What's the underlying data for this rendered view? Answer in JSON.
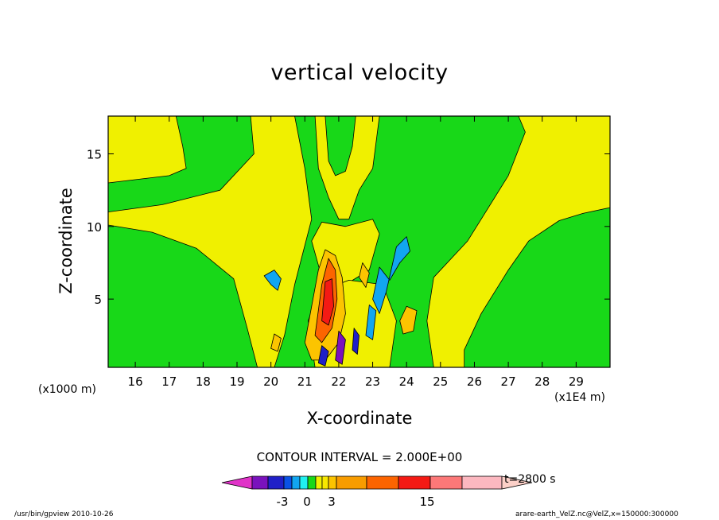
{
  "chart_data": {
    "type": "heatmap",
    "title": "vertical velocity",
    "xlabel": "X-coordinate",
    "ylabel": "Z-coordinate",
    "x_unit": "(x1E4 m)",
    "y_unit": "(x1000 m)",
    "xlim": [
      15.2,
      30.0
    ],
    "ylim": [
      0.3,
      17.6
    ],
    "x_ticks": [
      16,
      17,
      18,
      19,
      20,
      21,
      22,
      23,
      24,
      25,
      26,
      27,
      28,
      29
    ],
    "y_ticks": [
      5,
      10,
      15
    ],
    "contour_interval": "CONTOUR INTERVAL = 2.000E+00",
    "time": "t=2800 s",
    "colorbar_ticks": [
      "-3",
      "0",
      "3",
      "15"
    ],
    "background_value": -0.5,
    "regions": [
      {
        "value": 0.5,
        "points": [
          [
            15.2,
            10.1
          ],
          [
            16.5,
            9.6
          ],
          [
            17.8,
            8.5
          ],
          [
            18.9,
            6.4
          ],
          [
            19.3,
            3.0
          ],
          [
            19.6,
            0.3
          ],
          [
            20.1,
            0.3
          ],
          [
            20.4,
            2.5
          ],
          [
            20.7,
            6.0
          ],
          [
            21.2,
            10.5
          ],
          [
            21.0,
            14.0
          ],
          [
            20.7,
            17.6
          ],
          [
            19.4,
            17.6
          ],
          [
            19.5,
            15.0
          ],
          [
            18.5,
            12.5
          ],
          [
            16.8,
            11.5
          ],
          [
            15.2,
            11.0
          ]
        ]
      },
      {
        "value": 0.5,
        "points": [
          [
            17.2,
            17.6
          ],
          [
            17.4,
            15.5
          ],
          [
            17.5,
            14.0
          ],
          [
            17.0,
            13.5
          ],
          [
            15.2,
            13.0
          ],
          [
            15.2,
            17.6
          ]
        ]
      },
      {
        "value": 0.5,
        "points": [
          [
            24.8,
            0.3
          ],
          [
            24.6,
            3.5
          ],
          [
            24.8,
            6.5
          ],
          [
            25.8,
            9.0
          ],
          [
            26.2,
            10.5
          ],
          [
            27.0,
            13.5
          ],
          [
            27.5,
            16.5
          ],
          [
            27.3,
            17.6
          ],
          [
            30.0,
            17.6
          ],
          [
            30.0,
            11.3
          ],
          [
            29.2,
            10.9
          ],
          [
            28.5,
            10.4
          ],
          [
            27.6,
            9.0
          ],
          [
            27.0,
            7.0
          ],
          [
            26.2,
            4.0
          ],
          [
            25.7,
            1.5
          ],
          [
            25.7,
            0.3
          ]
        ]
      },
      {
        "value": 0.5,
        "points": [
          [
            21.3,
            17.6
          ],
          [
            21.4,
            14.0
          ],
          [
            21.7,
            12.0
          ],
          [
            22.0,
            10.5
          ],
          [
            22.3,
            10.5
          ],
          [
            22.6,
            12.5
          ],
          [
            23.0,
            14.0
          ],
          [
            23.2,
            17.6
          ]
        ]
      },
      {
        "value": 0.5,
        "points": [
          [
            21.2,
            9.0
          ],
          [
            21.5,
            6.5
          ],
          [
            22.2,
            6.0
          ],
          [
            22.9,
            7.0
          ],
          [
            23.2,
            9.5
          ],
          [
            23.0,
            10.5
          ],
          [
            22.2,
            10.0
          ],
          [
            21.5,
            10.3
          ]
        ]
      },
      {
        "value": 0.5,
        "points": [
          [
            21.1,
            3.5
          ],
          [
            21.3,
            0.3
          ],
          [
            23.5,
            0.3
          ],
          [
            23.7,
            3.5
          ],
          [
            23.3,
            6.0
          ],
          [
            22.3,
            6.3
          ],
          [
            21.4,
            5.5
          ]
        ]
      },
      {
        "value": -0.5,
        "points": [
          [
            21.6,
            17.6
          ],
          [
            21.7,
            14.5
          ],
          [
            21.9,
            13.5
          ],
          [
            22.2,
            13.8
          ],
          [
            22.4,
            15.5
          ],
          [
            22.5,
            17.6
          ]
        ]
      },
      {
        "value": -2.5,
        "points": [
          [
            19.8,
            6.6
          ],
          [
            20.0,
            6.0
          ],
          [
            20.2,
            5.6
          ],
          [
            20.3,
            6.4
          ],
          [
            20.1,
            7.0
          ]
        ]
      },
      {
        "value": -2.5,
        "points": [
          [
            23.2,
            7.2
          ],
          [
            23.5,
            6.3
          ],
          [
            23.8,
            7.5
          ],
          [
            24.1,
            8.3
          ],
          [
            24.0,
            9.3
          ],
          [
            23.7,
            8.6
          ],
          [
            23.4,
            5.5
          ],
          [
            23.2,
            4.0
          ],
          [
            23.0,
            5.0
          ]
        ]
      },
      {
        "value": 2.5,
        "points": [
          [
            21.0,
            2.0
          ],
          [
            21.2,
            4.5
          ],
          [
            21.4,
            7.0
          ],
          [
            21.6,
            8.4
          ],
          [
            21.9,
            8.0
          ],
          [
            22.1,
            6.5
          ],
          [
            22.2,
            4.0
          ],
          [
            22.0,
            2.0
          ],
          [
            21.6,
            0.8
          ],
          [
            21.2,
            0.8
          ]
        ]
      },
      {
        "value": 6.5,
        "points": [
          [
            21.3,
            2.5
          ],
          [
            21.5,
            6.0
          ],
          [
            21.7,
            7.8
          ],
          [
            21.9,
            7.0
          ],
          [
            21.95,
            5.0
          ],
          [
            21.8,
            3.0
          ],
          [
            21.5,
            2.0
          ]
        ]
      },
      {
        "value": 10.5,
        "points": [
          [
            21.5,
            3.5
          ],
          [
            21.6,
            6.2
          ],
          [
            21.8,
            6.4
          ],
          [
            21.85,
            4.5
          ],
          [
            21.7,
            3.2
          ]
        ]
      },
      {
        "value": 2.5,
        "points": [
          [
            23.8,
            3.5
          ],
          [
            24.0,
            4.5
          ],
          [
            24.3,
            4.2
          ],
          [
            24.2,
            2.8
          ],
          [
            23.9,
            2.6
          ]
        ]
      },
      {
        "value": 2.5,
        "points": [
          [
            22.6,
            6.5
          ],
          [
            22.7,
            7.5
          ],
          [
            22.9,
            6.8
          ],
          [
            22.8,
            5.8
          ]
        ]
      },
      {
        "value": 2.5,
        "points": [
          [
            20.0,
            1.6
          ],
          [
            20.1,
            2.6
          ],
          [
            20.3,
            2.3
          ],
          [
            20.2,
            1.4
          ]
        ]
      },
      {
        "value": -4.5,
        "points": [
          [
            21.4,
            0.6
          ],
          [
            21.5,
            1.8
          ],
          [
            21.7,
            1.4
          ],
          [
            21.6,
            0.4
          ]
        ]
      },
      {
        "value": -7.0,
        "points": [
          [
            21.9,
            0.8
          ],
          [
            22.0,
            2.8
          ],
          [
            22.2,
            2.2
          ],
          [
            22.1,
            0.5
          ]
        ]
      },
      {
        "value": -4.5,
        "points": [
          [
            22.4,
            1.5
          ],
          [
            22.45,
            3.0
          ],
          [
            22.6,
            2.5
          ],
          [
            22.55,
            1.2
          ]
        ]
      },
      {
        "value": -2.5,
        "points": [
          [
            22.8,
            2.5
          ],
          [
            22.9,
            4.6
          ],
          [
            23.1,
            4.2
          ],
          [
            23.0,
            2.2
          ]
        ]
      }
    ],
    "colorbar": [
      {
        "value": -10.0,
        "color": "#e033c8"
      },
      {
        "value": -7.0,
        "color": "#7a12bd"
      },
      {
        "value": -5.0,
        "color": "#2020c8"
      },
      {
        "value": -4.0,
        "color": "#0a52e6"
      },
      {
        "value": -3.0,
        "color": "#12a6f0"
      },
      {
        "value": -2.0,
        "color": "#20f0f0"
      },
      {
        "value": -1.0,
        "color": "#18d818"
      },
      {
        "value": 0.0,
        "color": "#f0f000"
      },
      {
        "value": 1.0,
        "color": "#f8e800"
      },
      {
        "value": 2.0,
        "color": "#fcc400"
      },
      {
        "value": 3.0,
        "color": "#f89c00"
      },
      {
        "value": 6.0,
        "color": "#fc6400"
      },
      {
        "value": 9.0,
        "color": "#f41a14"
      },
      {
        "value": 12.0,
        "color": "#fc7878"
      },
      {
        "value": 15.0,
        "color": "#fcb8c0"
      },
      {
        "value": 20.0,
        "color": "#fcd0c8"
      }
    ]
  },
  "footer": {
    "left": "/usr/bin/gpview   2010-10-26",
    "right": "arare-earth_VelZ.nc@VelZ,x=150000:300000"
  }
}
